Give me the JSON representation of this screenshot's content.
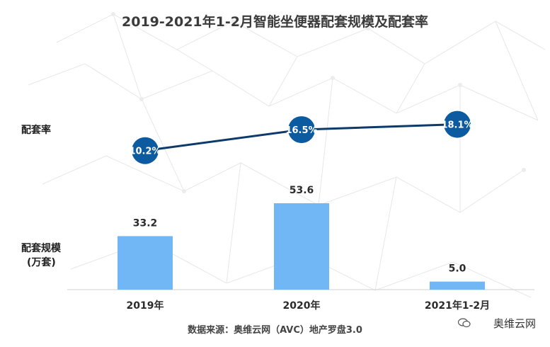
{
  "title": "2019-2021年1-2月智能坐便器配套规模及配套率",
  "labels": {
    "rate": "配套率",
    "scale_line1": "配套规模",
    "scale_line2": "(万套)"
  },
  "source": "数据来源：奥维云网（AVC）地产罗盘3.0",
  "watermark": "奥维云网",
  "colors": {
    "bar": "#72b7f5",
    "line": "#0b3a6b",
    "marker": "#0c5aa0",
    "axis": "#cfcfcf"
  },
  "chart_data": {
    "type": "bar",
    "categories": [
      "2019年",
      "2020年",
      "2021年1-2月"
    ],
    "series": [
      {
        "name": "配套规模",
        "type": "bar",
        "values": [
          33.2,
          53.6,
          5.0
        ],
        "labels": [
          "33.2",
          "53.6",
          "5.0"
        ]
      },
      {
        "name": "配套率",
        "type": "line",
        "values": [
          10.2,
          16.5,
          18.1
        ],
        "labels": [
          "10.2%",
          "16.5%",
          "18.1%"
        ]
      }
    ]
  }
}
